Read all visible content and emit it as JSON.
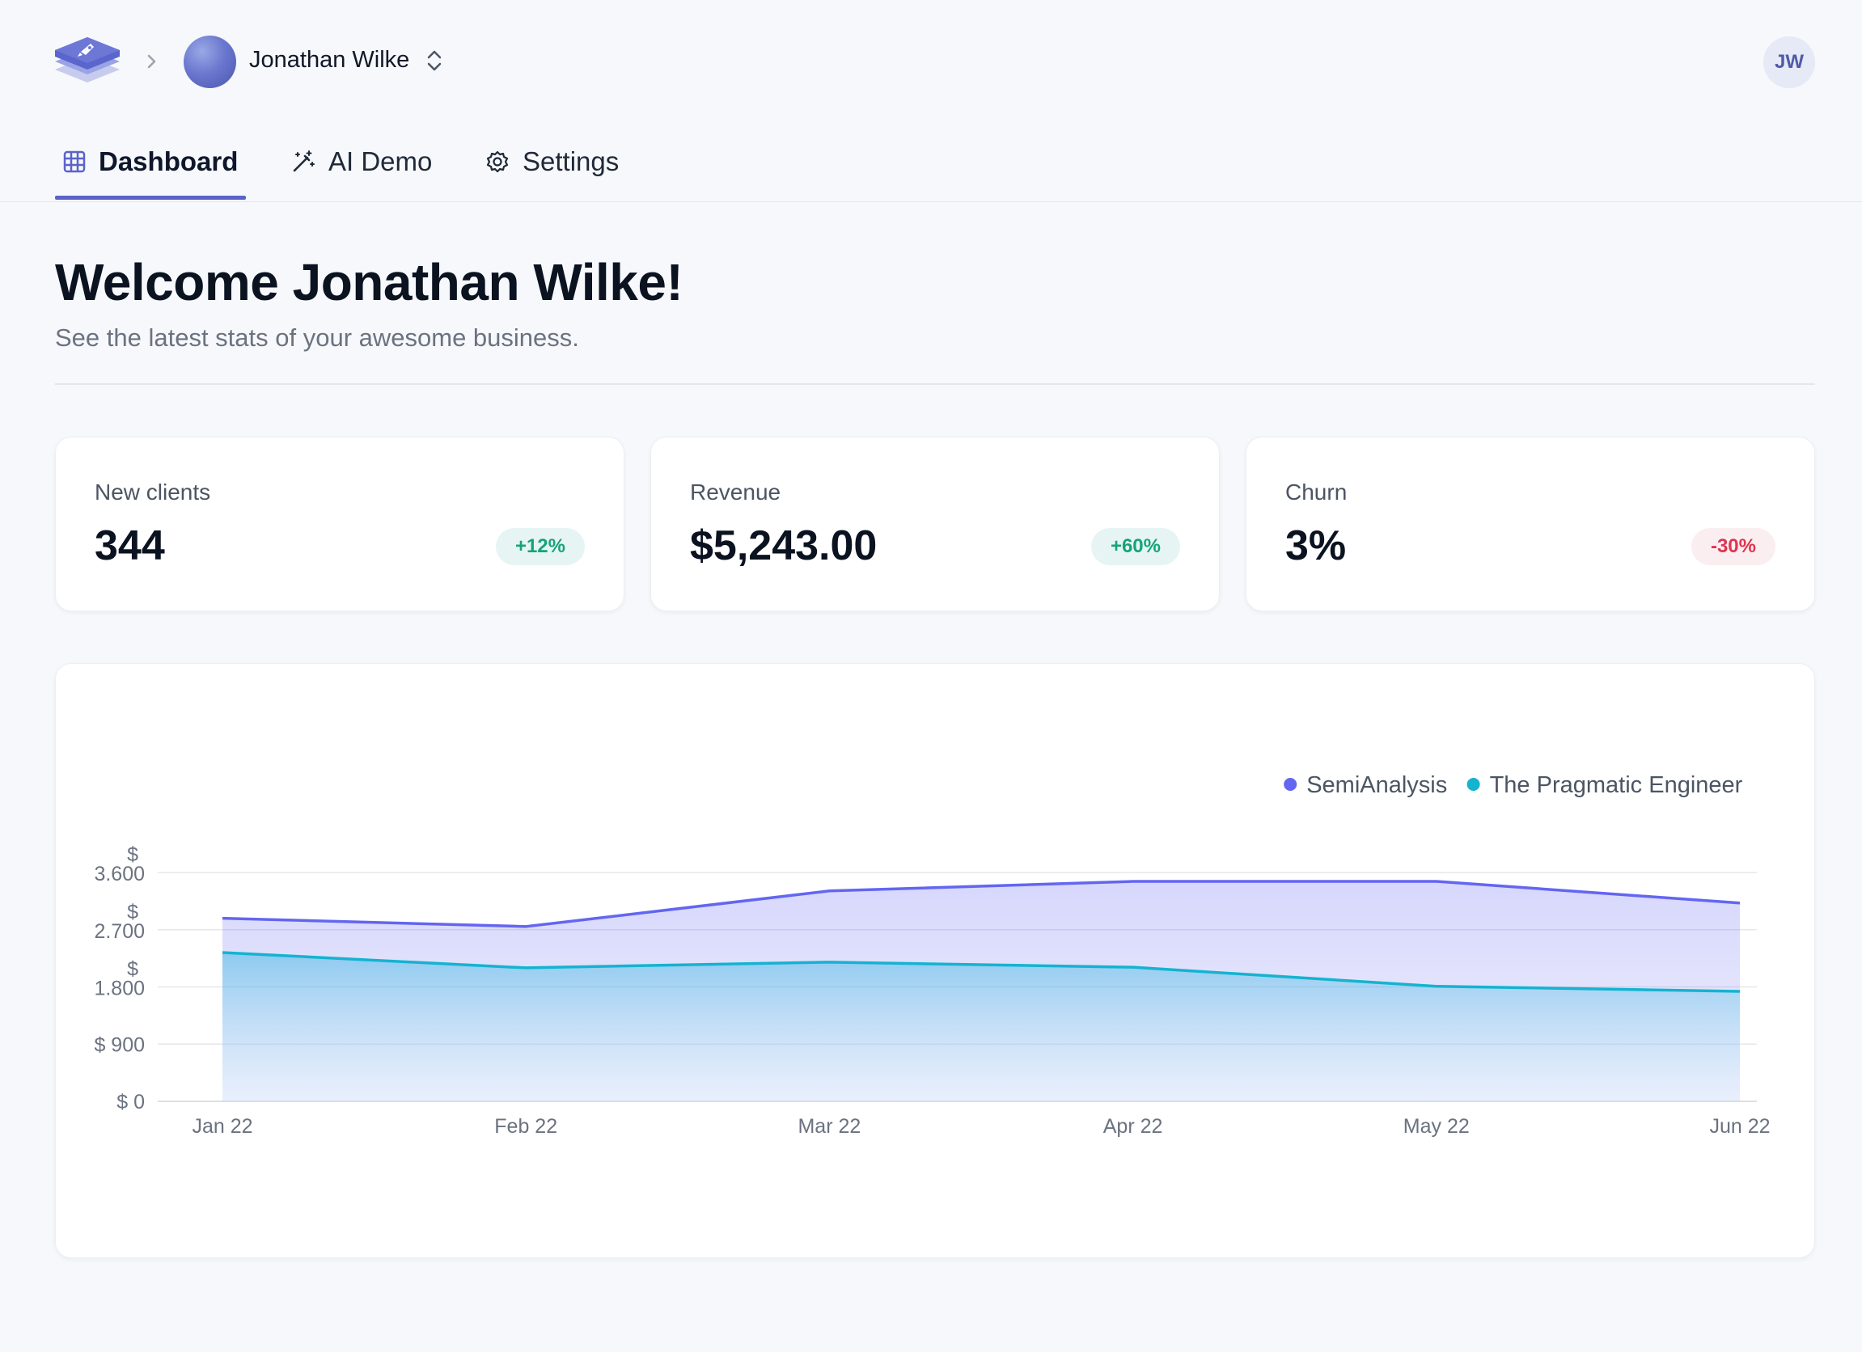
{
  "header": {
    "org_name": "Jonathan Wilke",
    "user_initials": "JW"
  },
  "tabs": [
    {
      "label": "Dashboard",
      "active": true,
      "icon": "grid-icon"
    },
    {
      "label": "AI Demo",
      "active": false,
      "icon": "magic-wand-icon"
    },
    {
      "label": "Settings",
      "active": false,
      "icon": "gear-icon"
    }
  ],
  "main": {
    "title": "Welcome Jonathan Wilke!",
    "subtitle": "See the latest stats of your awesome business."
  },
  "stats": [
    {
      "label": "New clients",
      "value": "344",
      "change": "+12%",
      "trend": "up"
    },
    {
      "label": "Revenue",
      "value": "$5,243.00",
      "change": "+60%",
      "trend": "up"
    },
    {
      "label": "Churn",
      "value": "3%",
      "change": "-30%",
      "trend": "down"
    }
  ],
  "colors": {
    "accent": "#5b63c8",
    "series_1": "#6366f1",
    "series_2": "#14b3d0",
    "positive": "#15a37a",
    "negative": "#e0334f"
  },
  "chart_data": {
    "type": "area",
    "categories": [
      "Jan 22",
      "Feb 22",
      "Mar 22",
      "Apr 22",
      "May 22",
      "Jun 22"
    ],
    "series": [
      {
        "name": "SemiAnalysis",
        "values": [
          2880,
          2750,
          3310,
          3460,
          3460,
          3120
        ]
      },
      {
        "name": "The Pragmatic Engineer",
        "values": [
          2340,
          2100,
          2190,
          2110,
          1810,
          1730
        ]
      }
    ],
    "y_ticks": [
      {
        "value": 0,
        "label": "$ 0"
      },
      {
        "value": 900,
        "label": "$ 900"
      },
      {
        "value": 1800,
        "label": "$\n1.800"
      },
      {
        "value": 2700,
        "label": "$\n2.700"
      },
      {
        "value": 3600,
        "label": "$\n3.600"
      }
    ],
    "ylim": [
      0,
      3600
    ],
    "grid": true,
    "legend_position": "top-right"
  }
}
